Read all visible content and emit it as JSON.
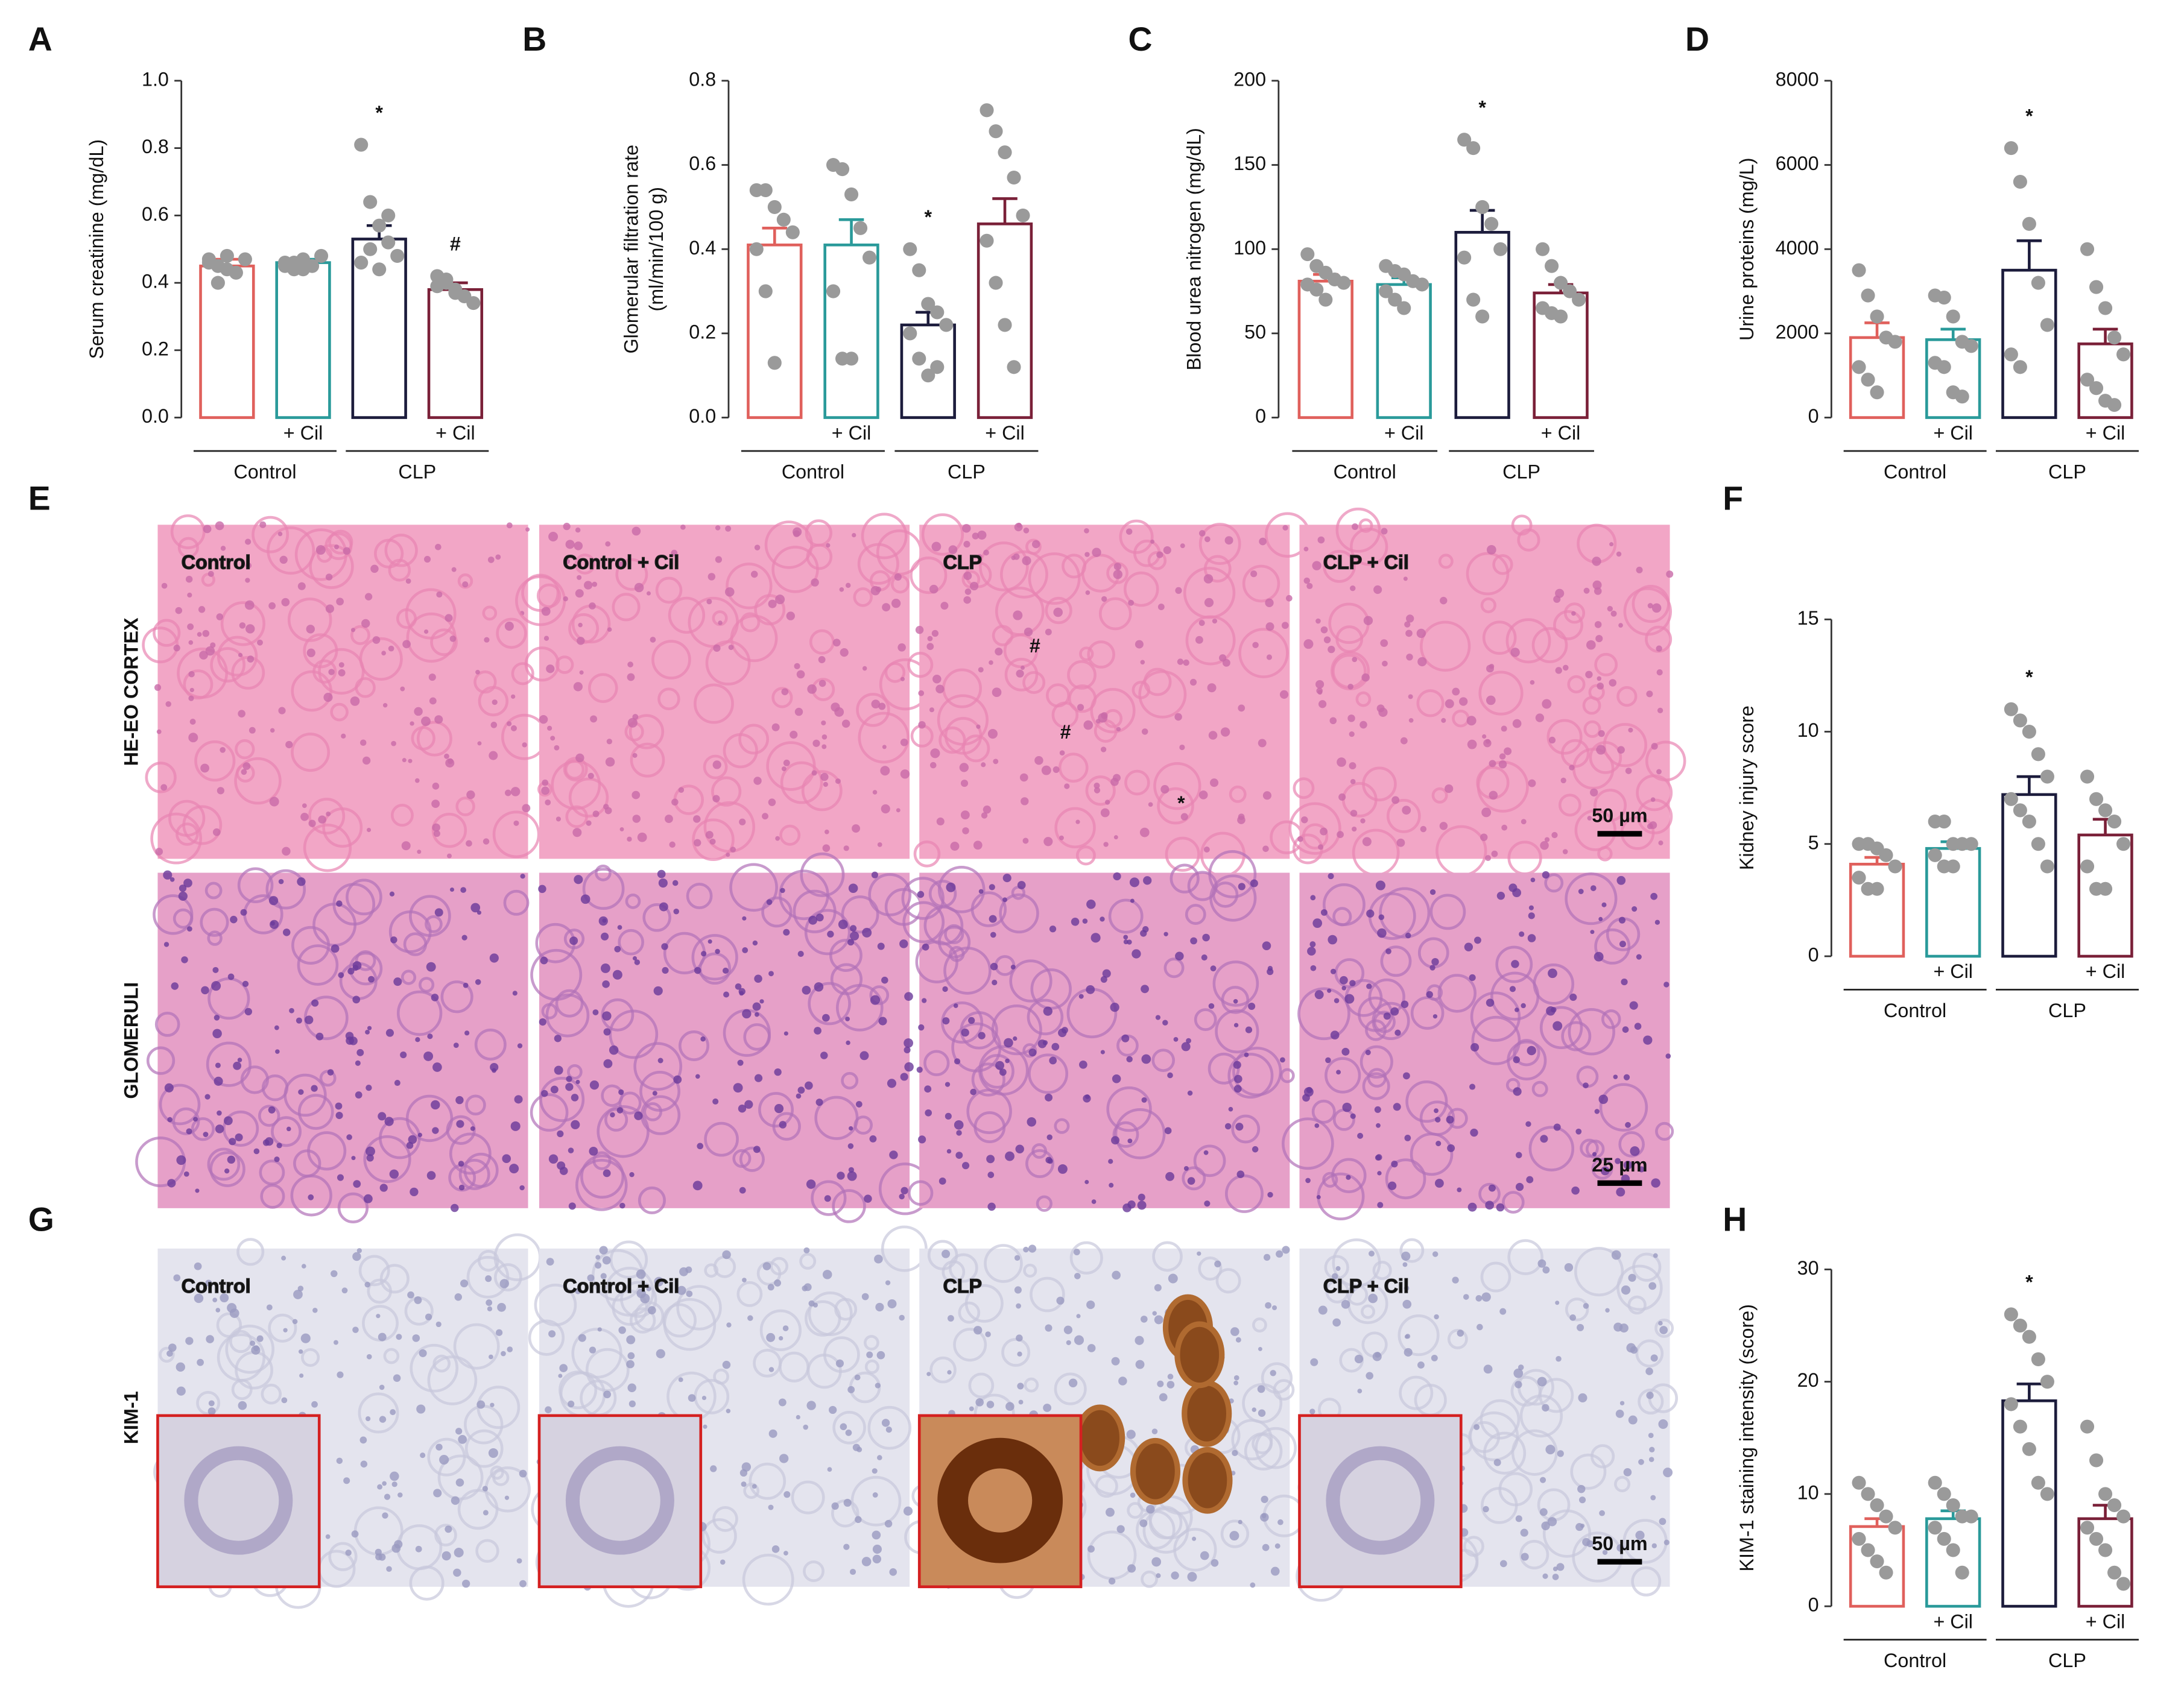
{
  "chart_data": [
    {
      "panel": "A",
      "type": "bar",
      "ylabel": "Serum creatinine  (mg/dL)",
      "categories": [
        null,
        "+ Cil",
        null,
        "+ Cil"
      ],
      "groups": [
        "Control",
        "CLP"
      ],
      "values": [
        0.45,
        0.46,
        0.53,
        0.38
      ],
      "errors": [
        0.02,
        0.01,
        0.04,
        0.02
      ],
      "colors": [
        "#e0605c",
        "#2a9a9a",
        "#1c1c3c",
        "#7a2038"
      ],
      "points": [
        [
          0.47,
          0.45,
          0.44,
          0.43,
          0.47,
          0.46,
          0.4,
          0.48
        ],
        [
          0.46,
          0.44,
          0.47,
          0.45,
          0.48,
          0.45,
          0.46,
          0.44
        ],
        [
          0.81,
          0.64,
          0.57,
          0.52,
          0.48,
          0.46,
          0.5,
          0.44,
          0.6
        ],
        [
          0.42,
          0.4,
          0.38,
          0.36,
          0.34,
          0.39,
          0.41,
          0.37
        ]
      ],
      "annotations": [
        null,
        null,
        "*",
        "#"
      ],
      "ylim": [
        0,
        1
      ],
      "yticks": [
        {
          "value": 0,
          "label": "0.0"
        },
        0.2,
        0.4,
        0.6,
        0.8,
        {
          "value": 1,
          "label": "1.0"
        }
      ]
    },
    {
      "panel": "B",
      "type": "bar",
      "ylabel": "Glomerular filtration rate\n(ml/min/100 g)",
      "categories": [
        null,
        "+ Cil",
        null,
        "+ Cil"
      ],
      "groups": [
        "Control",
        "CLP"
      ],
      "values": [
        0.41,
        0.41,
        0.22,
        0.46
      ],
      "errors": [
        0.04,
        0.06,
        0.03,
        0.06
      ],
      "colors": [
        "#e0605c",
        "#2a9a9a",
        "#1c1c3c",
        "#7a2038"
      ],
      "points": [
        [
          0.54,
          0.54,
          0.5,
          0.47,
          0.44,
          0.4,
          0.3,
          0.13
        ],
        [
          0.6,
          0.59,
          0.53,
          0.45,
          0.38,
          0.3,
          0.14,
          0.14
        ],
        [
          0.4,
          0.35,
          0.27,
          0.25,
          0.22,
          0.2,
          0.14,
          0.1,
          0.12
        ],
        [
          0.73,
          0.68,
          0.63,
          0.57,
          0.48,
          0.42,
          0.32,
          0.22,
          0.12
        ]
      ],
      "annotations": [
        null,
        null,
        "*",
        null
      ],
      "ylim": [
        0,
        0.8
      ],
      "yticks": [
        {
          "value": 0,
          "label": "0.0"
        },
        0.2,
        0.4,
        0.6,
        0.8
      ]
    },
    {
      "panel": "C",
      "type": "bar",
      "ylabel": "Blood urea nitrogen (mg/dL)",
      "categories": [
        null,
        "+ Cil",
        null,
        "+ Cil"
      ],
      "groups": [
        "Control",
        "CLP"
      ],
      "values": [
        81,
        79,
        110,
        74
      ],
      "errors": [
        4,
        4,
        13,
        5
      ],
      "colors": [
        "#e0605c",
        "#2a9a9a",
        "#1c1c3c",
        "#7a2038"
      ],
      "points": [
        [
          97,
          90,
          86,
          82,
          80,
          79,
          76,
          70
        ],
        [
          90,
          87,
          85,
          81,
          79,
          75,
          70,
          65
        ],
        [
          165,
          160,
          125,
          115,
          100,
          95,
          70,
          60
        ],
        [
          100,
          90,
          80,
          75,
          70,
          65,
          62,
          60
        ]
      ],
      "annotations": [
        null,
        null,
        "*",
        null
      ],
      "ylim": [
        0,
        200
      ],
      "yticks": [
        0,
        50,
        100,
        150,
        200
      ]
    },
    {
      "panel": "D",
      "type": "bar",
      "ylabel": "Urine proteins (mg/L)",
      "categories": [
        null,
        "+ Cil",
        null,
        "+ Cil"
      ],
      "groups": [
        "Control",
        "CLP"
      ],
      "values": [
        1900,
        1850,
        3500,
        1750
      ],
      "errors": [
        350,
        250,
        700,
        350
      ],
      "colors": [
        "#e0605c",
        "#2a9a9a",
        "#1c1c3c",
        "#7a2038"
      ],
      "points": [
        [
          3500,
          2900,
          2400,
          1900,
          1800,
          1200,
          900,
          600
        ],
        [
          2900,
          2850,
          2400,
          1800,
          1700,
          1300,
          1200,
          600,
          500
        ],
        [
          6400,
          5600,
          4600,
          3200,
          2200,
          1500,
          1200
        ],
        [
          4000,
          3100,
          2600,
          1900,
          1500,
          900,
          700,
          400,
          300
        ]
      ],
      "annotations": [
        null,
        null,
        "*",
        null
      ],
      "ylim": [
        0,
        8000
      ],
      "yticks": [
        0,
        2000,
        4000,
        6000,
        8000
      ]
    },
    {
      "panel": "F",
      "type": "bar",
      "ylabel": "Kidney injury score",
      "categories": [
        null,
        "+ Cil",
        null,
        "+ Cil"
      ],
      "groups": [
        "Control",
        "CLP"
      ],
      "values": [
        4.1,
        4.8,
        7.2,
        5.4
      ],
      "errors": [
        0.3,
        0.3,
        0.8,
        0.7
      ],
      "colors": [
        "#e0605c",
        "#2a9a9a",
        "#1c1c3c",
        "#7a2038"
      ],
      "points": [
        [
          5,
          5,
          4.8,
          4.5,
          4,
          3.5,
          3,
          3
        ],
        [
          6,
          6,
          5,
          5,
          5,
          4.5,
          4,
          4
        ],
        [
          11,
          10.5,
          10,
          9,
          8,
          7,
          6.5,
          6,
          5,
          4
        ],
        [
          8,
          7,
          6.5,
          6,
          5,
          4,
          3,
          3
        ]
      ],
      "annotations": [
        null,
        null,
        "*",
        null
      ],
      "ylim": [
        0,
        15
      ],
      "yticks": [
        0,
        5,
        10,
        15
      ]
    },
    {
      "panel": "H",
      "type": "bar",
      "ylabel": "KIM-1 staining intensity (score)",
      "categories": [
        null,
        "+ Cil",
        null,
        "+ Cil"
      ],
      "groups": [
        "Control",
        "CLP"
      ],
      "values": [
        7.1,
        7.8,
        18.3,
        7.8
      ],
      "errors": [
        0.7,
        0.7,
        1.5,
        1.2
      ],
      "colors": [
        "#e0605c",
        "#2a9a9a",
        "#1c1c3c",
        "#7a2038"
      ],
      "points": [
        [
          11,
          10,
          9,
          8,
          7,
          6,
          5,
          4,
          3
        ],
        [
          11,
          10,
          9,
          8,
          8,
          7,
          6,
          5,
          3
        ],
        [
          26,
          25,
          24,
          22,
          20,
          18,
          16,
          14,
          11,
          10
        ],
        [
          16,
          13,
          10,
          9,
          8,
          7,
          6,
          5,
          3,
          2
        ]
      ],
      "annotations": [
        null,
        null,
        "*",
        null
      ],
      "ylim": [
        0,
        30
      ],
      "yticks": [
        0,
        10,
        20,
        30
      ]
    }
  ],
  "micrographs": [
    {
      "panel": "E",
      "columns": [
        "Control",
        "Control + Cil",
        "CLP",
        "CLP + Cil"
      ],
      "rows": [
        "HE-EO CORTEX",
        "GLOMERULI"
      ],
      "scale_bars": [
        "50 µm",
        "25 µm"
      ],
      "marks": [
        "#",
        "#",
        "*"
      ]
    },
    {
      "panel": "G",
      "columns": [
        "Control",
        "Control + Cil",
        "CLP",
        "CLP + Cil"
      ],
      "rows": [
        "KIM-1"
      ],
      "scale_bars": [
        "50 µm"
      ]
    }
  ]
}
